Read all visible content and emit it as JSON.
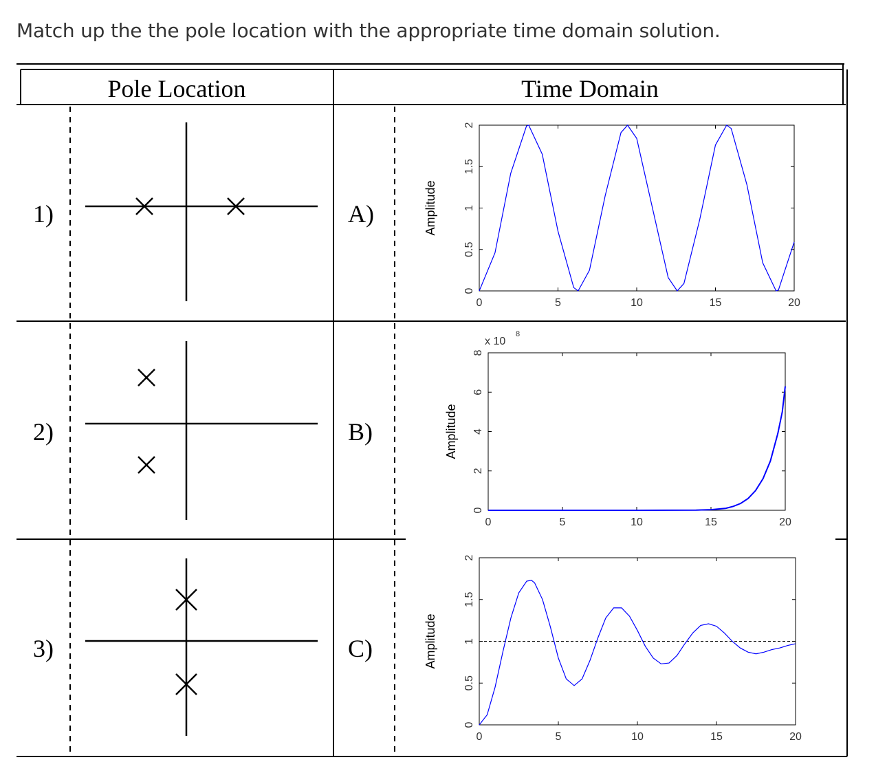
{
  "question": "Match up the the pole location with the appropriate time domain solution.",
  "headers": {
    "pole": "Pole Location",
    "time": "Time Domain"
  },
  "rows": [
    {
      "num": "1)",
      "letter": "A)",
      "pole_icon": "two-real-poles-icon"
    },
    {
      "num": "2)",
      "letter": "B)",
      "pole_icon": "complex-poles-left-half-plane-icon"
    },
    {
      "num": "3)",
      "letter": "C)",
      "pole_icon": "imaginary-axis-poles-icon"
    }
  ],
  "chart_data": [
    {
      "type": "line",
      "ylabel": "Amplitude",
      "xlim": [
        0,
        20
      ],
      "ylim": [
        0,
        2
      ],
      "xticks": [
        "0",
        "5",
        "10",
        "15",
        "20"
      ],
      "yticks": [
        "0",
        "0.5",
        "1",
        "1.5",
        "2"
      ],
      "series": [
        {
          "values_desc": "oscillation 1 - cos(t) sampled",
          "x": [
            0,
            1,
            2,
            3,
            3.14,
            4,
            5,
            6,
            6.28,
            7,
            8,
            9,
            9.42,
            10,
            11,
            12,
            12.57,
            13,
            14,
            15,
            15.71,
            16,
            17,
            18,
            18.85,
            19,
            20
          ],
          "y": [
            0,
            0.46,
            1.42,
            1.99,
            2,
            1.65,
            0.72,
            0.04,
            0,
            0.25,
            1.15,
            1.91,
            2,
            1.84,
            1.0,
            0.16,
            0,
            0.09,
            0.86,
            1.76,
            2,
            1.96,
            1.28,
            0.34,
            0,
            0.01,
            0.59
          ]
        }
      ]
    },
    {
      "type": "line",
      "ylabel": "Amplitude",
      "multiplier": "x 10",
      "multiplier_exp": "8",
      "xlim": [
        0,
        20
      ],
      "ylim": [
        0,
        8
      ],
      "xticks": [
        "0",
        "5",
        "10",
        "15",
        "20"
      ],
      "yticks": [
        "0",
        "2",
        "4",
        "6",
        "8"
      ],
      "series": [
        {
          "x": [
            0,
            5,
            10,
            14,
            15,
            16,
            16.5,
            17,
            17.5,
            18,
            18.5,
            19,
            19.5,
            19.8,
            20
          ],
          "y": [
            0,
            0,
            0,
            0.01,
            0.03,
            0.1,
            0.2,
            0.35,
            0.6,
            1.0,
            1.6,
            2.5,
            3.9,
            5.0,
            6.3
          ]
        }
      ]
    },
    {
      "type": "line",
      "ylabel": "Amplitude",
      "xlim": [
        0,
        20
      ],
      "ylim": [
        0,
        2
      ],
      "xticks": [
        "0",
        "5",
        "10",
        "15",
        "20"
      ],
      "yticks": [
        "0",
        "0.5",
        "1",
        "1.5",
        "2"
      ],
      "reference_line": 1,
      "series": [
        {
          "x": [
            0,
            0.5,
            1,
            1.5,
            2,
            2.5,
            3,
            3.3,
            3.5,
            4,
            4.5,
            5,
            5.5,
            6,
            6.5,
            7,
            7.5,
            8,
            8.5,
            9,
            9.5,
            10,
            10.5,
            11,
            11.5,
            12,
            12.5,
            13,
            13.5,
            14,
            14.5,
            15,
            15.5,
            16,
            16.5,
            17,
            17.5,
            18,
            18.5,
            19,
            19.5,
            20
          ],
          "y": [
            0,
            0.12,
            0.45,
            0.88,
            1.28,
            1.58,
            1.72,
            1.73,
            1.7,
            1.5,
            1.17,
            0.8,
            0.55,
            0.47,
            0.55,
            0.77,
            1.04,
            1.28,
            1.4,
            1.4,
            1.3,
            1.13,
            0.94,
            0.8,
            0.73,
            0.74,
            0.83,
            0.97,
            1.1,
            1.19,
            1.21,
            1.18,
            1.1,
            1.0,
            0.92,
            0.87,
            0.85,
            0.87,
            0.9,
            0.92,
            0.95,
            0.97
          ]
        }
      ]
    }
  ]
}
